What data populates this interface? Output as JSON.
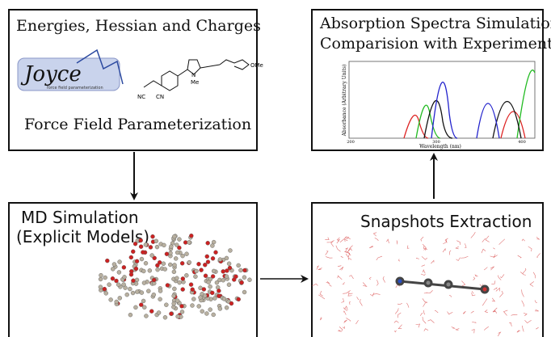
{
  "panels": {
    "force_field": {
      "title": "Energies, Hessian and Charges",
      "logo": "Joyce",
      "logo_caption": "force field parameterization",
      "molecule_labels": [
        "NC",
        "CN",
        "N",
        "Me",
        "OMe"
      ],
      "caption": "Force Field Parameterization"
    },
    "spectra": {
      "title_lines": [
        "Absorption Spectra Simulation",
        "Comparision with Experiments"
      ],
      "y_label": "Absorbance (Arbitrary Units)",
      "x_label": "Wavelength (nm)",
      "x_ticks": [
        "200",
        "300",
        "400"
      ]
    },
    "md": {
      "title_lines": [
        "MD Simulation",
        "(Explicit Models)"
      ]
    },
    "snapshots": {
      "title": "Snapshots Extraction"
    }
  }
}
